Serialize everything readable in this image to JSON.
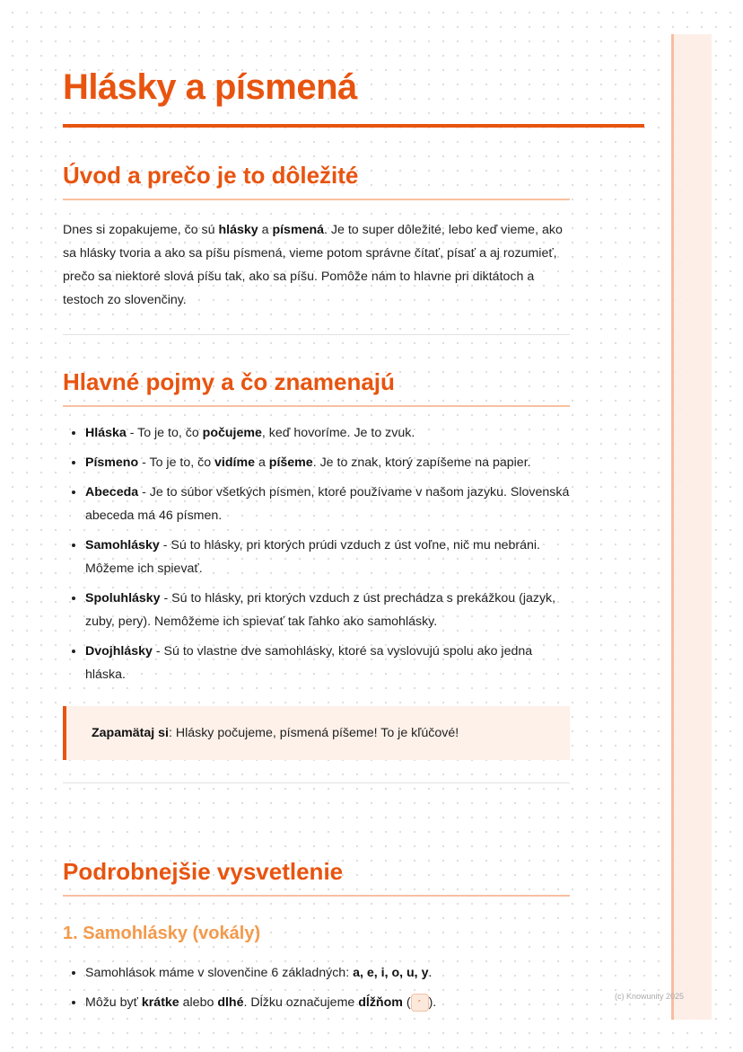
{
  "title": "Hlásky a písmená",
  "sections": [
    {
      "heading": "Úvod a prečo je to dôležité",
      "paragraph": [
        "Dnes si zopakujeme, čo sú ",
        {
          "text": "hlásky",
          "bold": true
        },
        " a ",
        {
          "text": "písmená",
          "bold": true
        },
        ". Je to super dôležité, lebo keď vieme, ako sa hlásky tvoria a ako sa píšu písmená, vieme potom správne čítať, písať a aj rozumieť, prečo sa niektoré slová píšu tak, ako sa píšu. Pomôže nám to hlavne pri diktátoch a testoch zo slovenčiny."
      ]
    },
    {
      "heading": "Hlavné pojmy a čo znamenajú",
      "items": [
        [
          {
            "text": "Hláska",
            "bold": true
          },
          " - To je to, čo ",
          {
            "text": "počujeme",
            "bold": true
          },
          ", keď hovoríme. Je to zvuk."
        ],
        [
          {
            "text": "Písmeno",
            "bold": true
          },
          " - To je to, čo ",
          {
            "text": "vidíme",
            "bold": true
          },
          " a ",
          {
            "text": "píšeme",
            "bold": true
          },
          ". Je to znak, ktorý zapíšeme na papier."
        ],
        [
          {
            "text": "Abeceda",
            "bold": true
          },
          " - Je to súbor všetkých písmen, ktoré používame v našom jazyku. Slovenská abeceda má 46 písmen."
        ],
        [
          {
            "text": "Samohlásky",
            "bold": true
          },
          " - Sú to hlásky, pri ktorých prúdi vzduch z úst voľne, nič mu nebráni. Môžeme ich spievať."
        ],
        [
          {
            "text": "Spoluhlásky",
            "bold": true
          },
          " - Sú to hlásky, pri ktorých vzduch z úst prechádza s prekážkou (jazyk, zuby, pery). Nemôžeme ich spievať tak ľahko ako samohlásky."
        ],
        [
          {
            "text": "Dvojhlásky",
            "bold": true
          },
          " - Sú to vlastne dve samohlásky, ktoré sa vyslovujú spolu ako jedna hláska."
        ]
      ],
      "note": [
        {
          "text": "Zapamätaj si",
          "bold": true
        },
        ": Hlásky počujeme, písmená píšeme! To je kľúčové!"
      ]
    },
    {
      "heading": "Podrobnejšie vysvetlenie",
      "subheading": "1. Samohlásky (vokály)",
      "items": [
        [
          "Samohlások máme v slovenčine 6 základných: ",
          {
            "text": "a, e, i, o, u, y",
            "bold": true
          },
          "."
        ],
        [
          "Môžu byť ",
          {
            "text": "krátke",
            "bold": true
          },
          " alebo ",
          {
            "text": "dlhé",
            "bold": true
          },
          ". Dĺžku označujeme ",
          {
            "text": "dĺžňom",
            "bold": true
          },
          " (",
          {
            "text": "´",
            "code": true
          },
          ")."
        ]
      ]
    }
  ],
  "footer": "(c) Knowunity 2025"
}
